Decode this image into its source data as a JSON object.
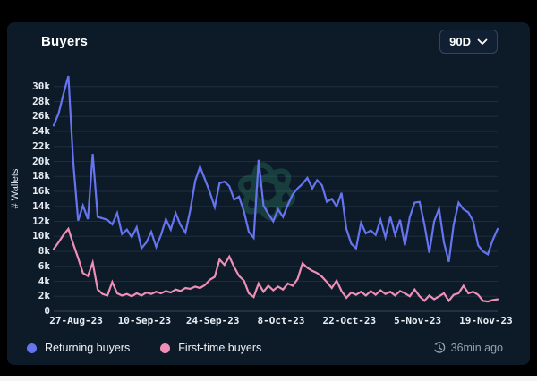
{
  "header": {
    "title": "Buyers",
    "range_selector": {
      "value": "90D"
    }
  },
  "legend": [
    {
      "label": "Returning buyers",
      "color": "#6674f0"
    },
    {
      "label": "First-time buyers",
      "color": "#ef8fb7"
    }
  ],
  "footer": {
    "updated": "36min ago"
  },
  "colors": {
    "card_bg": "#0d1b29",
    "page_bg": "#000000",
    "grid": "rgba(148,176,204,0.13)",
    "axis": "rgba(148,176,204,0.3)",
    "returning": "#6674f0",
    "first_time": "#ef8fb7",
    "watermark": "#2f8468"
  },
  "chart_data": {
    "type": "line",
    "title": "Buyers",
    "xlabel": "",
    "ylabel": "# Wallets",
    "unit": "wallets",
    "grid": "horizontal",
    "legend_position": "bottom-left",
    "ylim": [
      0,
      32000
    ],
    "y_ticks": [
      0,
      2000,
      4000,
      6000,
      8000,
      10000,
      12000,
      14000,
      16000,
      18000,
      20000,
      22000,
      24000,
      26000,
      28000,
      30000
    ],
    "y_tick_labels": [
      "0",
      "2k",
      "4k",
      "6k",
      "8k",
      "10k",
      "12k",
      "14k",
      "16k",
      "18k",
      "20k",
      "22k",
      "24k",
      "26k",
      "28k",
      "30k"
    ],
    "x_tick_labels": [
      "27-Aug-23",
      "10-Sep-23",
      "24-Sep-23",
      "8-Oct-23",
      "22-Oct-23",
      "5-Nov-23",
      "19-Nov-23"
    ],
    "x_tick_positions": [
      0.0505,
      0.2044,
      0.3582,
      0.5121,
      0.6659,
      0.8198,
      0.9736
    ],
    "series": [
      {
        "name": "Returning buyers",
        "color": "#6674f0",
        "values": [
          24800,
          26400,
          29000,
          31400,
          20000,
          12100,
          14100,
          12300,
          21000,
          12600,
          12400,
          12200,
          11600,
          13100,
          10300,
          10900,
          9900,
          11200,
          8400,
          9200,
          10600,
          8600,
          10200,
          12300,
          10900,
          13100,
          11500,
          10500,
          13500,
          17400,
          19300,
          17600,
          15900,
          13900,
          17100,
          17300,
          16700,
          14900,
          15300,
          13300,
          10600,
          9800,
          20200,
          14100,
          13000,
          12000,
          13600,
          12600,
          14200,
          15600,
          16400,
          17000,
          17800,
          16400,
          17500,
          16800,
          14600,
          15000,
          14000,
          15800,
          11000,
          9000,
          8400,
          11800,
          10400,
          10800,
          10200,
          12200,
          9900,
          12600,
          10200,
          12200,
          8800,
          12600,
          14500,
          14600,
          11600,
          7800,
          12000,
          13700,
          9200,
          6600,
          11600,
          14500,
          13600,
          13200,
          12000,
          8800,
          8000,
          7600,
          9500,
          11000
        ]
      },
      {
        "name": "First-time buyers",
        "color": "#ef8fb7",
        "values": [
          8300,
          9200,
          10200,
          11000,
          9000,
          7100,
          5100,
          4700,
          6500,
          2900,
          2300,
          2100,
          3900,
          2400,
          2100,
          2300,
          2000,
          2400,
          2100,
          2500,
          2300,
          2600,
          2400,
          2700,
          2500,
          2900,
          2700,
          3100,
          3000,
          3300,
          3100,
          3500,
          4200,
          4600,
          6900,
          6200,
          7300,
          5900,
          4700,
          4100,
          2400,
          1900,
          3700,
          2600,
          3400,
          2800,
          3300,
          2900,
          3700,
          3400,
          4300,
          6400,
          5800,
          5400,
          5100,
          4600,
          3900,
          3100,
          4100,
          2700,
          1800,
          2500,
          2200,
          2600,
          2100,
          2700,
          2200,
          2800,
          2300,
          2600,
          2100,
          2700,
          2400,
          2000,
          2900,
          2000,
          1400,
          2100,
          1600,
          2000,
          2400,
          1400,
          2200,
          2400,
          3400,
          2400,
          2600,
          2200,
          1400,
          1300,
          1500,
          1600
        ]
      }
    ]
  }
}
